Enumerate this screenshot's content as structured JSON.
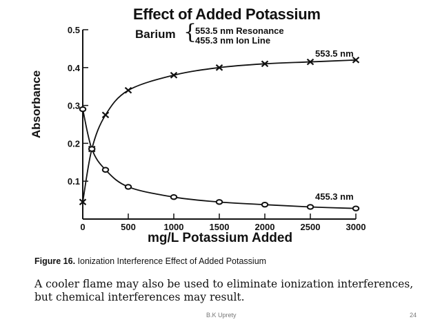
{
  "chart_data": {
    "type": "line",
    "title": "Effect of Added Potassium",
    "xlabel": "mg/L Potassium Added",
    "ylabel": "Absorbance",
    "xlim": [
      0,
      3000
    ],
    "ylim": [
      0,
      0.5
    ],
    "x_ticks": [
      0,
      500,
      1000,
      1500,
      2000,
      2500,
      3000
    ],
    "x_tick_labels": [
      "0",
      "500",
      "1000",
      "1500",
      "2000",
      "2500",
      "3000"
    ],
    "y_ticks": [
      0.1,
      0.2,
      0.3,
      0.4,
      0.5
    ],
    "y_tick_labels": [
      "0.1",
      "0.2",
      "0.3",
      "0.4",
      "0.5"
    ],
    "grid": false,
    "legend": {
      "element": "Barium",
      "brace": "{",
      "lines": [
        "553.5 nm Resonance",
        "455.3 nm Ion Line"
      ]
    },
    "series": [
      {
        "name": "553.5 nm",
        "marker": "x",
        "x": [
          0,
          100,
          250,
          500,
          1000,
          1500,
          2000,
          2500,
          3000
        ],
        "y": [
          0.045,
          0.185,
          0.275,
          0.34,
          0.38,
          0.4,
          0.41,
          0.415,
          0.42
        ]
      },
      {
        "name": "455.3 nm",
        "marker": "o",
        "x": [
          0,
          100,
          250,
          500,
          1000,
          1500,
          2000,
          2500,
          3000
        ],
        "y": [
          0.29,
          0.185,
          0.13,
          0.085,
          0.058,
          0.045,
          0.038,
          0.032,
          0.028
        ]
      }
    ]
  },
  "caption": {
    "label": "Figure 16.",
    "text": " Ionization Interference Effect of Added Potassium"
  },
  "body_text": "A cooler flame may also be used to eliminate ionization interferences, but chemical interferences may result.",
  "footer": {
    "author": "B.K Uprety",
    "page": "24"
  }
}
